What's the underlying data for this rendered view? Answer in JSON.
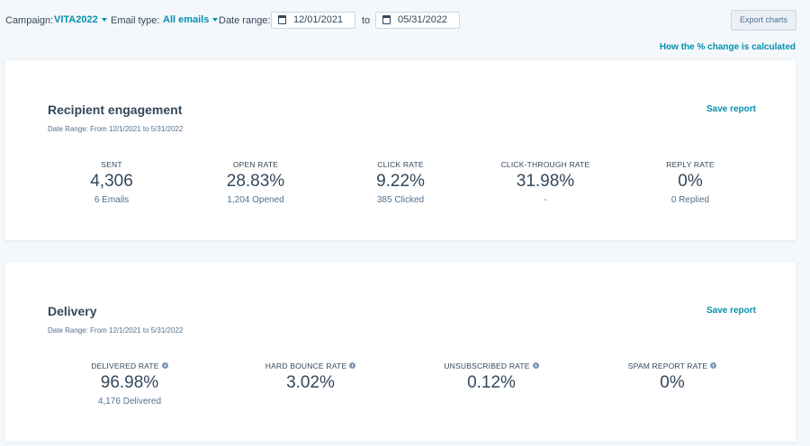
{
  "filters": {
    "campaign_label": "Campaign:",
    "campaign_value": "VITA2022",
    "email_type_label": "Email type:",
    "email_type_value": "All emails",
    "date_range_label": "Date range:",
    "date_from": "12/01/2021",
    "to_label": "to",
    "date_to": "05/31/2022",
    "export_label": "Export charts"
  },
  "how_link": "How the % change is calculated",
  "engagement": {
    "title": "Recipient engagement",
    "date_range": "Date Range: From 12/1/2021 to 5/31/2022",
    "save_label": "Save report",
    "metrics": [
      {
        "label": "SENT",
        "value": "4,306",
        "sub": "6 Emails"
      },
      {
        "label": "OPEN RATE",
        "value": "28.83%",
        "sub": "1,204 Opened"
      },
      {
        "label": "CLICK RATE",
        "value": "9.22%",
        "sub": "385 Clicked"
      },
      {
        "label": "CLICK-THROUGH RATE",
        "value": "31.98%",
        "sub": "-"
      },
      {
        "label": "REPLY RATE",
        "value": "0%",
        "sub": "0 Replied"
      }
    ]
  },
  "delivery": {
    "title": "Delivery",
    "date_range": "Date Range: From 12/1/2021 to 5/31/2022",
    "save_label": "Save report",
    "metrics": [
      {
        "label": "DELIVERED RATE",
        "value": "96.98%",
        "sub": "4,176 Delivered"
      },
      {
        "label": "HARD BOUNCE RATE",
        "value": "3.02%"
      },
      {
        "label": "UNSUBSCRIBED RATE",
        "value": "0.12%"
      },
      {
        "label": "SPAM REPORT RATE",
        "value": "0%"
      }
    ]
  },
  "icons": {
    "calendar": "calendar-icon",
    "caret": "chevron-down-icon",
    "info": "info-icon"
  },
  "colors": {
    "accent": "#0091ae",
    "text": "#33475b",
    "background": "#f5f8fa"
  }
}
